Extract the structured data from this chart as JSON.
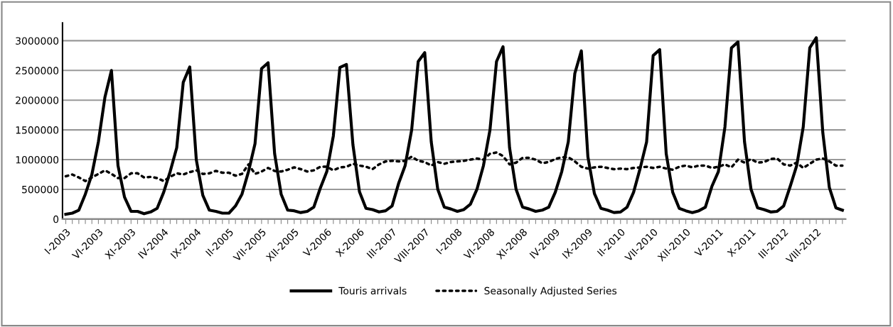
{
  "chart_data": {
    "type": "line",
    "categories": [
      "I-2003",
      null,
      null,
      null,
      null,
      "VI-2003",
      null,
      null,
      null,
      null,
      "XI-2003",
      null,
      null,
      null,
      null,
      "IV-2004",
      null,
      null,
      null,
      null,
      "IX-2004",
      null,
      null,
      null,
      null,
      "II-2005",
      null,
      null,
      null,
      null,
      "VII-2005",
      null,
      null,
      null,
      null,
      "XII-2005",
      null,
      null,
      null,
      null,
      "V-2006",
      null,
      null,
      null,
      null,
      "X-2006",
      null,
      null,
      null,
      null,
      "III-2007",
      null,
      null,
      null,
      null,
      "VIII-2007",
      null,
      null,
      null,
      null,
      "I-2008",
      null,
      null,
      null,
      null,
      "VI-2008",
      null,
      null,
      null,
      null,
      "XI-2008",
      null,
      null,
      null,
      null,
      "IV-2009",
      null,
      null,
      null,
      null,
      "IX-2009",
      null,
      null,
      null,
      null,
      "II-2010",
      null,
      null,
      null,
      null,
      "VII-2010",
      null,
      null,
      null,
      null,
      "XII-2010",
      null,
      null,
      null,
      null,
      "V-2011",
      null,
      null,
      null,
      null,
      "X-2011",
      null,
      null,
      null,
      null,
      "III-2012",
      null,
      null,
      null,
      null,
      "VIII-2012",
      null,
      null,
      null,
      null
    ],
    "series": [
      {
        "name": "Touris arrivals",
        "color": "#000000",
        "line_style": "solid",
        "values": [
          80000,
          100000,
          150000,
          420000,
          750000,
          1300000,
          2050000,
          2500000,
          900000,
          370000,
          130000,
          130000,
          90000,
          120000,
          180000,
          450000,
          800000,
          1200000,
          2300000,
          2560000,
          1000000,
          400000,
          150000,
          130000,
          100000,
          100000,
          220000,
          420000,
          800000,
          1270000,
          2530000,
          2630000,
          1100000,
          420000,
          150000,
          140000,
          110000,
          130000,
          200000,
          520000,
          800000,
          1400000,
          2550000,
          2600000,
          1250000,
          460000,
          180000,
          160000,
          120000,
          140000,
          220000,
          600000,
          900000,
          1500000,
          2650000,
          2800000,
          1300000,
          500000,
          200000,
          170000,
          130000,
          160000,
          250000,
          500000,
          900000,
          1500000,
          2650000,
          2900000,
          1200000,
          500000,
          200000,
          170000,
          130000,
          150000,
          200000,
          450000,
          800000,
          1300000,
          2450000,
          2830000,
          1050000,
          430000,
          180000,
          150000,
          110000,
          120000,
          200000,
          450000,
          850000,
          1300000,
          2750000,
          2850000,
          1100000,
          450000,
          180000,
          140000,
          110000,
          140000,
          200000,
          550000,
          800000,
          1550000,
          2880000,
          2980000,
          1300000,
          500000,
          190000,
          160000,
          120000,
          130000,
          220000,
          550000,
          900000,
          1550000,
          2880000,
          3050000,
          1450000,
          530000,
          190000,
          150000
        ]
      },
      {
        "name": "Seasonally Adjusted Series",
        "color": "#000000",
        "line_style": "dotted",
        "values": [
          720000,
          750000,
          700000,
          640000,
          700000,
          760000,
          820000,
          760000,
          690000,
          690000,
          770000,
          770000,
          700000,
          710000,
          690000,
          640000,
          710000,
          770000,
          750000,
          790000,
          820000,
          760000,
          770000,
          810000,
          780000,
          780000,
          730000,
          760000,
          920000,
          760000,
          800000,
          860000,
          810000,
          800000,
          830000,
          870000,
          840000,
          800000,
          820000,
          880000,
          880000,
          820000,
          870000,
          880000,
          930000,
          900000,
          880000,
          840000,
          920000,
          970000,
          980000,
          970000,
          980000,
          1050000,
          980000,
          960000,
          900000,
          960000,
          930000,
          960000,
          970000,
          980000,
          1000000,
          1020000,
          1000000,
          1100000,
          1120000,
          1060000,
          920000,
          950000,
          1030000,
          1030000,
          1000000,
          940000,
          960000,
          1010000,
          1040000,
          1040000,
          970000,
          880000,
          850000,
          870000,
          880000,
          860000,
          840000,
          850000,
          840000,
          860000,
          870000,
          880000,
          860000,
          880000,
          850000,
          830000,
          880000,
          900000,
          870000,
          900000,
          900000,
          860000,
          880000,
          920000,
          870000,
          1000000,
          950000,
          1010000,
          950000,
          960000,
          1010000,
          1020000,
          920000,
          900000,
          950000,
          860000,
          930000,
          1000000,
          1020000,
          970000,
          900000,
          900000
        ]
      }
    ],
    "ylim": [
      0,
      3300000
    ],
    "yticks": [
      0,
      500000,
      1000000,
      1500000,
      2000000,
      2500000,
      3000000
    ],
    "grid": "y",
    "legend": "bottom"
  }
}
